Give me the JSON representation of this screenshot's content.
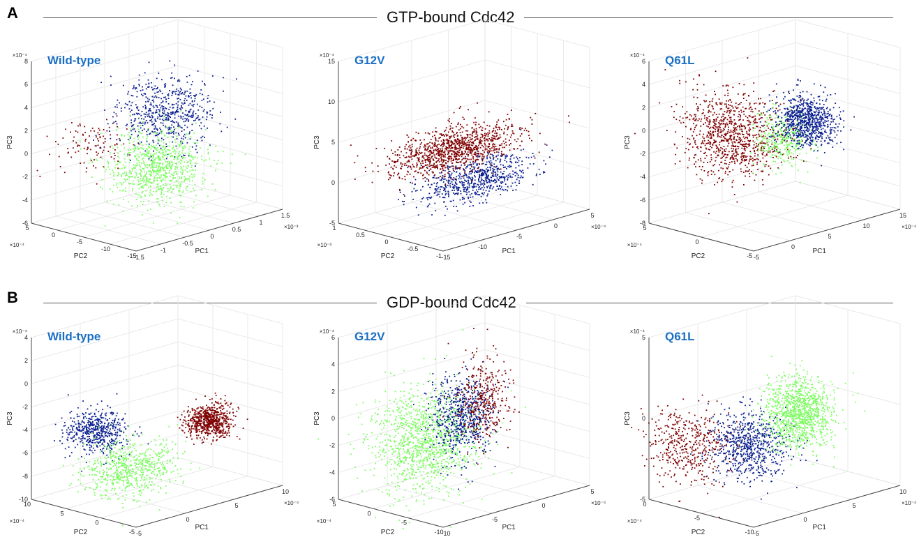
{
  "figure": {
    "panel_a": {
      "letter": "A",
      "title": "GTP-bound Cdc42"
    },
    "panel_b": {
      "letter": "B",
      "title": "GDP-bound Cdc42"
    }
  },
  "colors": {
    "cluster1": "#7f0000",
    "cluster2": "#0a1f8f",
    "cluster3": "#7cfc60",
    "title": "#1a6fc4",
    "grid": "#e4e4e4",
    "axis": "#444444"
  },
  "chart_data": [
    {
      "type": "scatter",
      "panel": "A",
      "title": "Wild-type",
      "xlabel": "PC1",
      "ylabel": "PC2",
      "zlabel": "PC3",
      "xexp": "×10⁻³",
      "yexp": "×10⁻⁴",
      "zexp": "×10⁻⁴",
      "xticks": [
        "-1.5",
        "-1",
        "-0.5",
        "0",
        "0.5",
        "1",
        "1.5"
      ],
      "yticks": [
        "-15",
        "-10",
        "-5",
        "0",
        "5"
      ],
      "zticks": [
        "-6",
        "-4",
        "-2",
        "0",
        "2",
        "4",
        "6",
        "8"
      ],
      "xlim": [
        -1.5,
        1.5
      ],
      "ylim": [
        -15,
        5
      ],
      "zlim": [
        -6,
        8
      ],
      "grid": true,
      "clusters": [
        {
          "color": "cluster1",
          "center": [
            -0.8,
            0,
            0.5
          ],
          "spread": [
            0.3,
            2.5,
            1.0
          ],
          "n": 110
        },
        {
          "color": "cluster2",
          "center": [
            0.5,
            -2,
            2.0
          ],
          "spread": [
            0.35,
            3,
            1.5
          ],
          "n": 600
        },
        {
          "color": "cluster3",
          "center": [
            -0.1,
            -6,
            -1.5
          ],
          "spread": [
            0.35,
            3.5,
            1.5
          ],
          "n": 850
        }
      ]
    },
    {
      "type": "scatter",
      "panel": "A",
      "title": "G12V",
      "xlabel": "PC1",
      "ylabel": "PC2",
      "zlabel": "PC3",
      "xexp": "×10⁻⁴",
      "yexp": "×10⁻³",
      "zexp": "×10⁻⁴",
      "xticks": [
        "-15",
        "-10",
        "-5",
        "0",
        "5"
      ],
      "yticks": [
        "-1",
        "-0.5",
        "0",
        "0.5",
        "1"
      ],
      "zticks": [
        "-5",
        "0",
        "5",
        "10",
        "15"
      ],
      "xlim": [
        -15,
        5
      ],
      "ylim": [
        -1,
        1
      ],
      "zlim": [
        -5,
        15
      ],
      "grid": true,
      "clusters": [
        {
          "color": "cluster2",
          "center": [
            -5,
            -0.2,
            0.0
          ],
          "spread": [
            3.5,
            0.2,
            1.2
          ],
          "n": 700
        },
        {
          "color": "cluster1",
          "center": [
            -5,
            0.2,
            3.0
          ],
          "spread": [
            4.0,
            0.22,
            1.2
          ],
          "n": 1100
        }
      ]
    },
    {
      "type": "scatter",
      "panel": "A",
      "title": "Q61L",
      "xlabel": "PC1",
      "ylabel": "PC2",
      "zlabel": "PC3",
      "xexp": "×10⁻⁴",
      "yexp": "×10⁻⁴",
      "zexp": "×10⁻⁴",
      "xticks": [
        "-5",
        "0",
        "5",
        "10",
        "15"
      ],
      "yticks": [
        "-5",
        "0",
        "5"
      ],
      "zticks": [
        "-8",
        "-6",
        "-4",
        "-2",
        "0",
        "2",
        "4",
        "6"
      ],
      "xlim": [
        -5,
        15
      ],
      "ylim": [
        -5,
        5
      ],
      "zlim": [
        -8,
        6
      ],
      "grid": true,
      "clusters": [
        {
          "color": "cluster1",
          "center": [
            2,
            2,
            -1.0
          ],
          "spread": [
            2.2,
            1.8,
            1.8
          ],
          "n": 950
        },
        {
          "color": "cluster3",
          "center": [
            6,
            0,
            -1.5
          ],
          "spread": [
            1.2,
            1.0,
            1.2
          ],
          "n": 350
        },
        {
          "color": "cluster2",
          "center": [
            8,
            -1,
            0.0
          ],
          "spread": [
            1.3,
            1.1,
            1.1
          ],
          "n": 800
        }
      ]
    },
    {
      "type": "scatter",
      "panel": "B",
      "title": "Wild-type",
      "xlabel": "PC1",
      "ylabel": "PC2",
      "zlabel": "PC3",
      "xexp": "×10⁻⁴",
      "yexp": "×10⁻⁴",
      "zexp": "×10⁻⁴",
      "xticks": [
        "-5",
        "0",
        "5",
        "10"
      ],
      "yticks": [
        "-5",
        "0",
        "5",
        "10"
      ],
      "zticks": [
        "-10",
        "-8",
        "-6",
        "-4",
        "-2",
        "0",
        "2",
        "4"
      ],
      "xlim": [
        -5,
        10
      ],
      "ylim": [
        -5,
        10
      ],
      "zlim": [
        -10,
        4
      ],
      "grid": true,
      "clusters": [
        {
          "color": "cluster2",
          "center": [
            -2,
            5,
            -4.0
          ],
          "spread": [
            1.2,
            1.5,
            0.9
          ],
          "n": 550
        },
        {
          "color": "cluster3",
          "center": [
            0,
            3,
            -7.5
          ],
          "spread": [
            2.0,
            2.0,
            1.2
          ],
          "n": 650
        },
        {
          "color": "cluster1",
          "center": [
            6,
            0,
            -4.3
          ],
          "spread": [
            0.9,
            1.0,
            0.7
          ],
          "n": 700
        }
      ]
    },
    {
      "type": "scatter",
      "panel": "B",
      "title": "G12V",
      "xlabel": "PC1",
      "ylabel": "PC2",
      "zlabel": "PC3",
      "xexp": "×10⁻⁴",
      "yexp": "×10⁻⁴",
      "zexp": "×10⁻⁴",
      "xticks": [
        "-10",
        "-5",
        "0",
        "5"
      ],
      "yticks": [
        "-10",
        "-5",
        "0",
        "5"
      ],
      "zticks": [
        "-6",
        "-4",
        "-2",
        "0",
        "2",
        "4",
        "6"
      ],
      "xlim": [
        -10,
        5
      ],
      "ylim": [
        -10,
        5
      ],
      "zlim": [
        -6,
        6
      ],
      "grid": true,
      "clusters": [
        {
          "color": "cluster3",
          "center": [
            -6,
            -2,
            -1.5
          ],
          "spread": [
            2.0,
            2.5,
            1.8
          ],
          "n": 1200
        },
        {
          "color": "cluster2",
          "center": [
            -1,
            0,
            -1.0
          ],
          "spread": [
            1.2,
            1.5,
            1.5
          ],
          "n": 650
        },
        {
          "color": "cluster1",
          "center": [
            2,
            1,
            -0.5
          ],
          "spread": [
            1.0,
            1.2,
            1.6
          ],
          "n": 350
        }
      ]
    },
    {
      "type": "scatter",
      "panel": "B",
      "title": "Q61L",
      "xlabel": "PC1",
      "ylabel": "PC2",
      "zlabel": "PC3",
      "xexp": "×10⁻⁴",
      "yexp": "×10⁻⁴",
      "zexp": "×10⁻⁴",
      "xticks": [
        "-5",
        "0",
        "5",
        "10"
      ],
      "yticks": [
        "-10",
        "-5",
        "0"
      ],
      "zticks": [
        "-5",
        "0",
        "5"
      ],
      "xlim": [
        -5,
        10
      ],
      "ylim": [
        -10,
        0
      ],
      "zlim": [
        -5,
        5
      ],
      "grid": true,
      "clusters": [
        {
          "color": "cluster1",
          "center": [
            -3,
            -2,
            -1.5
          ],
          "spread": [
            1.4,
            1.5,
            1.1
          ],
          "n": 450
        },
        {
          "color": "cluster2",
          "center": [
            1,
            -4,
            -2.0
          ],
          "spread": [
            1.2,
            1.4,
            1.0
          ],
          "n": 700
        },
        {
          "color": "cluster3",
          "center": [
            5,
            -5,
            -0.5
          ],
          "spread": [
            1.2,
            1.2,
            1.1
          ],
          "n": 1100
        }
      ]
    }
  ]
}
